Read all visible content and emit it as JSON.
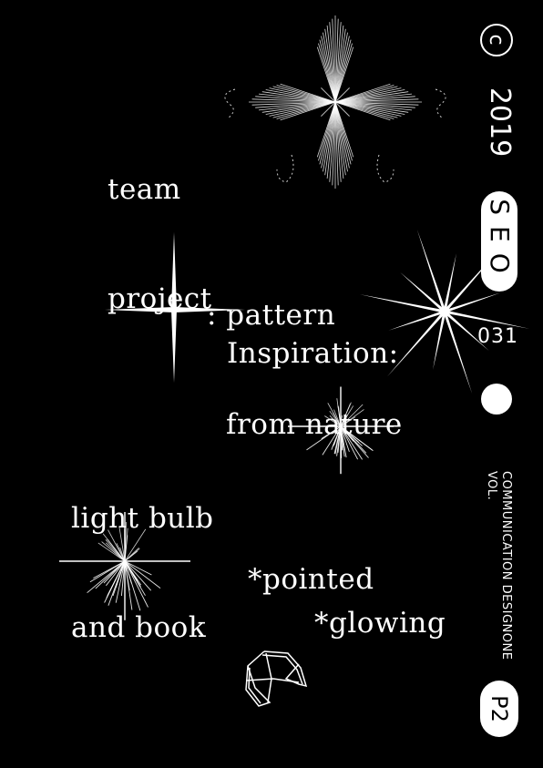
{
  "poster": {
    "title_lines": [
      "team",
      "project"
    ],
    "theme_lines": [
      ": pattern",
      "from nature"
    ],
    "inspiration_label": "Inspiration:",
    "inspiration_lines": [
      "light bulb",
      "and book"
    ],
    "keywords": [
      "*pointed",
      "*glowing"
    ]
  },
  "sidebar": {
    "copyright_symbol": "c",
    "year": "2019",
    "name": "SEO",
    "number": "031",
    "series_line1": "COMMUNICATION DESIGN",
    "series_line2": "VOL.",
    "series_line3": "ONE",
    "page_badge": "P2"
  },
  "colors": {
    "background": "#000000",
    "ink": "#ffffff"
  }
}
